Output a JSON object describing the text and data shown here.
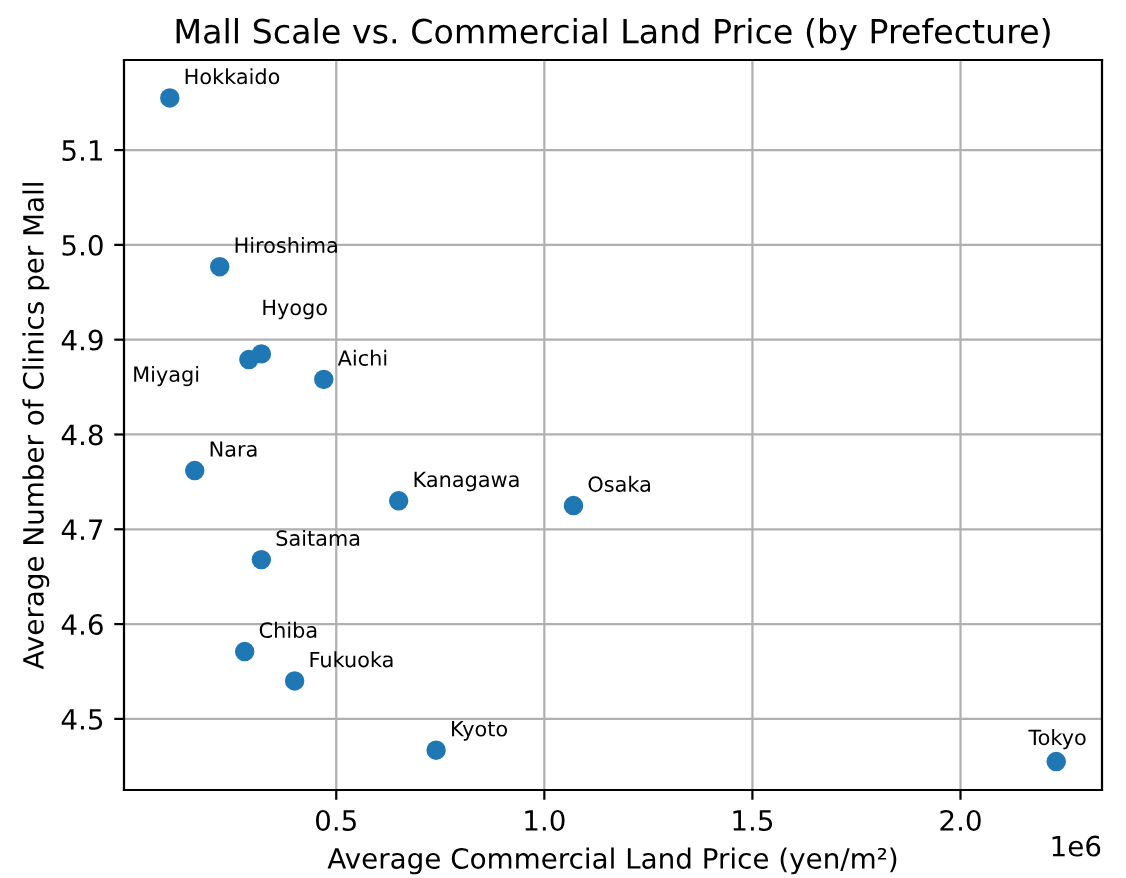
{
  "chart_data": {
    "type": "scatter",
    "title": "Mall Scale vs. Commercial Land Price (by Prefecture)",
    "xlabel": "Average Commercial Land Price (yen/m²)",
    "ylabel": "Average Number of Clinics per Mall",
    "x": [
      0.1,
      0.22,
      0.32,
      0.29,
      0.47,
      0.16,
      0.65,
      1.07,
      0.32,
      0.28,
      0.4,
      0.74,
      2.23
    ],
    "values": [
      5.155,
      4.977,
      4.885,
      4.879,
      4.858,
      4.762,
      4.73,
      4.725,
      4.668,
      4.571,
      4.54,
      4.467,
      4.455
    ],
    "color": "#1f77b4",
    "marker": "circle",
    "grid": true,
    "xlim": [
      -0.01,
      2.34
    ],
    "ylim": [
      4.425,
      5.195
    ],
    "xticks": [
      0.5,
      {
        "value": 1,
        "label": "1.0"
      },
      1.5,
      {
        "value": 2,
        "label": "2.0"
      }
    ],
    "yticks": [
      4.5,
      4.6,
      4.7,
      4.8,
      4.9,
      {
        "value": 5,
        "label": "5.0"
      },
      5.1
    ],
    "annotations": [
      {
        "text": "Hokkaido",
        "x": 0.1,
        "y": 5.155
      },
      {
        "text": "Hiroshima",
        "x": 0.22,
        "y": 4.977
      },
      {
        "text": "Hyogo",
        "x": 0.32,
        "y": 4.885
      },
      {
        "text": "Miyagi",
        "x": 0.29,
        "y": 4.879
      },
      {
        "text": "Aichi",
        "x": 0.47,
        "y": 4.858
      },
      {
        "text": "Nara",
        "x": 0.16,
        "y": 4.762
      },
      {
        "text": "Kanagawa",
        "x": 0.65,
        "y": 4.73
      },
      {
        "text": "Osaka",
        "x": 1.07,
        "y": 4.725
      },
      {
        "text": "Saitama",
        "x": 0.32,
        "y": 4.668
      },
      {
        "text": "Chiba",
        "x": 0.28,
        "y": 4.571
      },
      {
        "text": "Fukuoka",
        "x": 0.4,
        "y": 4.54
      },
      {
        "text": "Kyoto",
        "x": 0.74,
        "y": 4.467
      },
      {
        "text": "Tokyo",
        "x": 2.23,
        "y": 4.455
      },
      "1e6"
    ]
  }
}
